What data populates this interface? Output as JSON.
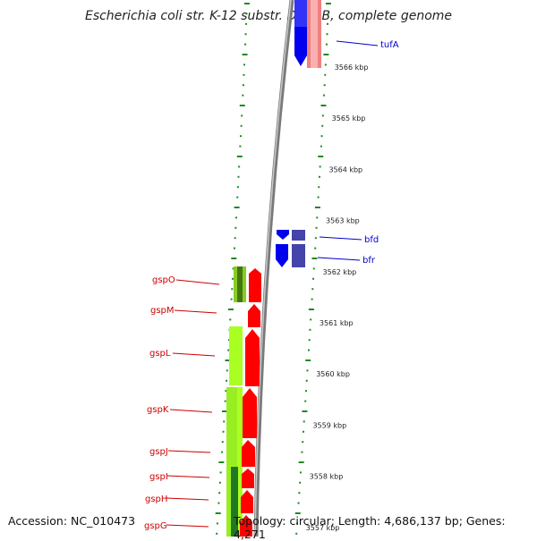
{
  "title": "Escherichia coli str. K-12 substr. DH10B, complete genome",
  "accession": "Accession: NC_010473",
  "topology": "Topology: circular; Length: 4,686,137 bp; Genes: 4,271",
  "colors": {
    "reverse_strand_gene": "#ff0000",
    "forward_strand_gene": "#0000ff",
    "reverse_cds_light": "#aaff22",
    "forward_cds_dark": "#4444aa",
    "tick": "#1e8a1e",
    "backbone": "#888888"
  },
  "kbp_ticks": [
    {
      "label": "3566 kbp",
      "value": 3566
    },
    {
      "label": "3565 kbp",
      "value": 3565
    },
    {
      "label": "3564 kbp",
      "value": 3564
    },
    {
      "label": "3563 kbp",
      "value": 3563
    },
    {
      "label": "3562 kbp",
      "value": 3562
    },
    {
      "label": "3561 kbp",
      "value": 3561
    },
    {
      "label": "3560 kbp",
      "value": 3560
    },
    {
      "label": "3559 kbp",
      "value": 3559
    },
    {
      "label": "3558 kbp",
      "value": 3558
    },
    {
      "label": "3557 kbp",
      "value": 3557
    }
  ],
  "genes_forward": [
    {
      "name": "tufA",
      "strand": "+"
    },
    {
      "name": "bfd",
      "strand": "+"
    },
    {
      "name": "bfr",
      "strand": "+"
    }
  ],
  "genes_reverse": [
    {
      "name": "gspO",
      "strand": "-"
    },
    {
      "name": "gspM",
      "strand": "-"
    },
    {
      "name": "gspL",
      "strand": "-"
    },
    {
      "name": "gspK",
      "strand": "-"
    },
    {
      "name": "gspJ",
      "strand": "-"
    },
    {
      "name": "gspI",
      "strand": "-"
    },
    {
      "name": "gspH",
      "strand": "-"
    },
    {
      "name": "gspG",
      "strand": "-"
    }
  ]
}
